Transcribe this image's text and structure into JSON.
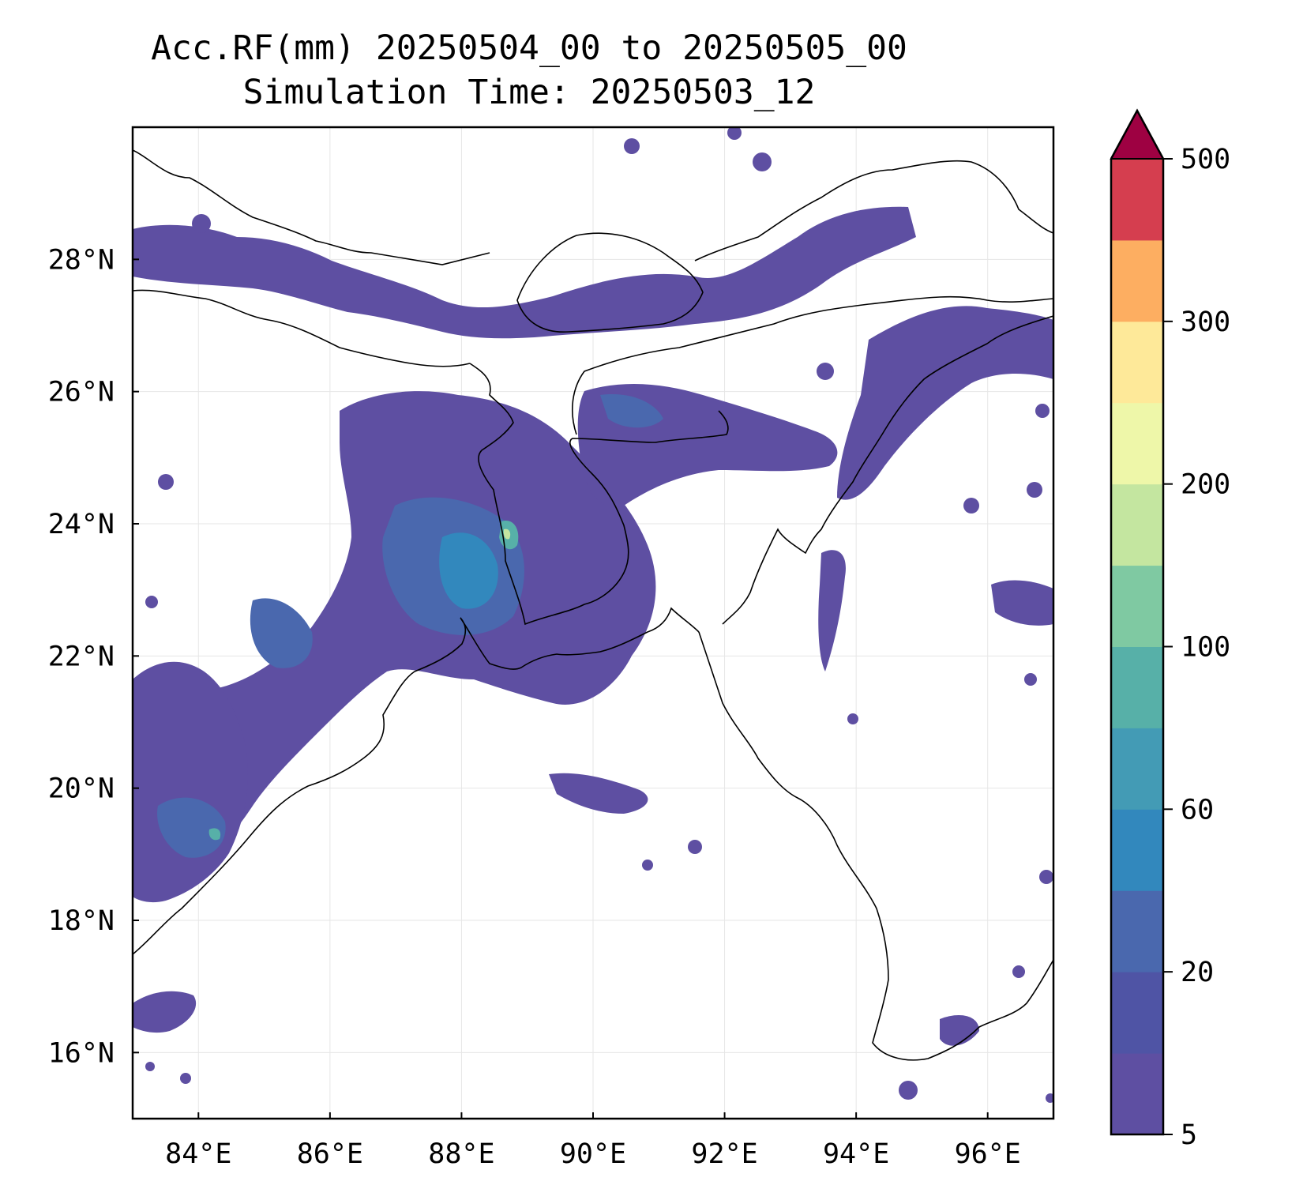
{
  "title": {
    "line1": "Acc.RF(mm) 20250504_00 to 20250505_00",
    "line2": "Simulation Time: 20250503_12"
  },
  "map": {
    "lon_range": [
      83.0,
      97.0
    ],
    "lat_range": [
      15.0,
      30.0
    ],
    "x_ticks": [
      {
        "value": 84,
        "label": "84°E"
      },
      {
        "value": 86,
        "label": "86°E"
      },
      {
        "value": 88,
        "label": "88°E"
      },
      {
        "value": 90,
        "label": "90°E"
      },
      {
        "value": 92,
        "label": "92°E"
      },
      {
        "value": 94,
        "label": "94°E"
      },
      {
        "value": 96,
        "label": "96°E"
      }
    ],
    "y_ticks": [
      {
        "value": 16,
        "label": "16°N"
      },
      {
        "value": 18,
        "label": "18°N"
      },
      {
        "value": 20,
        "label": "20°N"
      },
      {
        "value": 22,
        "label": "22°N"
      },
      {
        "value": 24,
        "label": "24°N"
      },
      {
        "value": 26,
        "label": "26°N"
      },
      {
        "value": 28,
        "label": "28°N"
      }
    ],
    "grid": true
  },
  "colorbar": {
    "levels": [
      5,
      10,
      20,
      40,
      60,
      80,
      100,
      150,
      200,
      250,
      300,
      400,
      500
    ],
    "colors": [
      "#5e4fa2",
      "#4f54a5",
      "#4a68ae",
      "#3288bd",
      "#439bb5",
      "#57b0a8",
      "#7fc9a2",
      "#c4e6a0",
      "#eef7a9",
      "#fee999",
      "#fdae61",
      "#d53e4f"
    ],
    "extend_color": "#9e0142",
    "tick_labels": [
      {
        "value": 5,
        "label": "5"
      },
      {
        "value": 20,
        "label": "20"
      },
      {
        "value": 60,
        "label": "60"
      },
      {
        "value": 100,
        "label": "100"
      },
      {
        "value": 200,
        "label": "200"
      },
      {
        "value": 300,
        "label": "300"
      },
      {
        "value": 500,
        "label": "500"
      }
    ]
  }
}
